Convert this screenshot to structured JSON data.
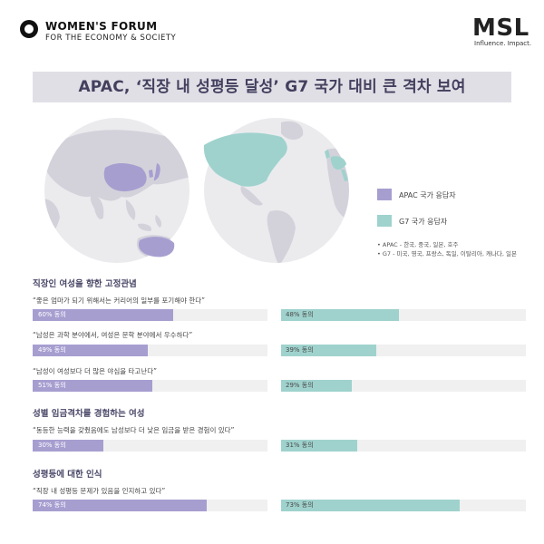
{
  "header": {
    "org_title": "WOMEN'S FORUM",
    "org_subtitle": "FOR THE ECONOMY & SOCIETY",
    "brand": "MSL",
    "brand_tagline": "Influence. Impact."
  },
  "banner": {
    "title": "APAC, ‘직장 내 성평등 달성’ G7 국가 대비 큰 격차 보여"
  },
  "legend": {
    "items": [
      {
        "label": "APAC 국가 응답자",
        "color": "#a79ed0"
      },
      {
        "label": "G7 국가 응답자",
        "color": "#9fd2cd"
      }
    ],
    "notes": [
      "• APAC - 한국, 중국, 일본, 호주",
      "• G7 - 미국, 영국, 프랑스, 독일, 이탈리아, 캐나다, 일본"
    ]
  },
  "colors": {
    "apac": "#a79ed0",
    "g7": "#9fd2cd",
    "track": "#f0f0f0",
    "banner_bg": "#e1dfe6",
    "heading": "#4a4868"
  },
  "chart_data": {
    "type": "bar",
    "orientation": "horizontal",
    "unit": "% 동의",
    "xlim": [
      0,
      100
    ],
    "series_names": [
      "APAC 국가 응답자",
      "G7 국가 응답자"
    ],
    "sections": [
      {
        "title": "직장인 여성을 향한 고정관념",
        "questions": [
          {
            "text": "“좋은 엄마가 되기 위해서는 커리어의 일부를 포기해야 한다”",
            "apac": 60,
            "g7": 48,
            "apac_label": "60% 동의",
            "g7_label": "48% 동의"
          },
          {
            "text": "“남성은 과학 분야에서, 여성은 문학 분야에서 우수하다”",
            "apac": 49,
            "g7": 39,
            "apac_label": "49% 동의",
            "g7_label": "39% 동의"
          },
          {
            "text": "“남성이 여성보다 더 많은 야심을 타고난다”",
            "apac": 51,
            "g7": 29,
            "apac_label": "51% 동의",
            "g7_label": "29% 동의"
          }
        ]
      },
      {
        "title": "성별 임금격차를 경험하는 여성",
        "questions": [
          {
            "text": "“동등한 능력을 갖췄음에도 남성보다 더 낮은 임금을 받은 경험이 있다”",
            "apac": 30,
            "g7": 31,
            "apac_label": "30% 동의",
            "g7_label": "31% 동의"
          }
        ]
      },
      {
        "title": "성평등에 대한 인식",
        "questions": [
          {
            "text": "“직장 내 성평등 문제가 있음을 인지하고 있다”",
            "apac": 74,
            "g7": 73,
            "apac_label": "74% 동의",
            "g7_label": "73% 동의"
          }
        ]
      }
    ]
  }
}
